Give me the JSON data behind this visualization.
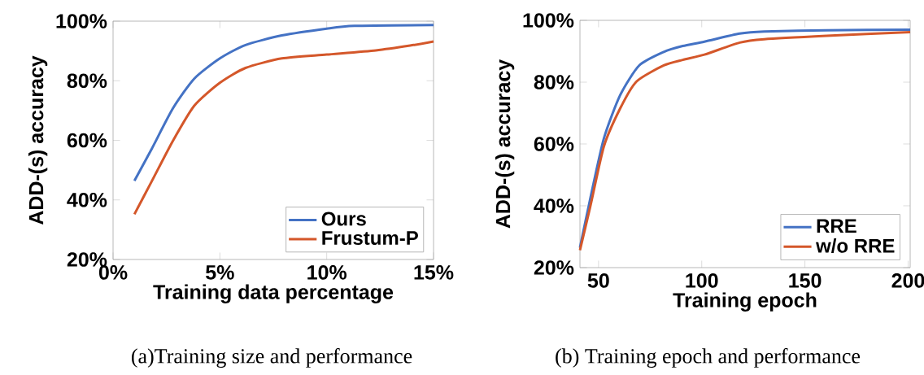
{
  "chart_data": [
    {
      "type": "line",
      "xlabel": "Training data percentage",
      "ylabel": "ADD-(s) accuracy",
      "xlim": [
        0,
        15
      ],
      "ylim": [
        20,
        100
      ],
      "xticks": [
        {
          "value": 0,
          "label": "0%"
        },
        {
          "value": 5,
          "label": "5%"
        },
        {
          "value": 10,
          "label": "10%"
        },
        {
          "value": 15,
          "label": "15%"
        }
      ],
      "yticks": [
        {
          "value": 20,
          "label": "20%"
        },
        {
          "value": 40,
          "label": "40%"
        },
        {
          "value": 60,
          "label": "60%"
        },
        {
          "value": 80,
          "label": "80%"
        },
        {
          "value": 100,
          "label": "100%"
        }
      ],
      "series": [
        {
          "name": "Ours",
          "color": "#4472c4",
          "x": [
            1.0,
            1.8,
            2.8,
            3.8,
            5.0,
            6.2,
            7.9,
            10.0,
            11.3,
            15.0
          ],
          "values": [
            46.4,
            57.0,
            70.7,
            80.7,
            87.5,
            92.0,
            95.2,
            97.5,
            98.4,
            98.7
          ]
        },
        {
          "name": "Frustum-P",
          "color": "#d4572a",
          "x": [
            1.0,
            1.8,
            2.8,
            3.8,
            5.0,
            6.2,
            7.9,
            10.0,
            12.3,
            13.9,
            15.0
          ],
          "values": [
            35.2,
            46.1,
            59.8,
            71.6,
            79.3,
            84.3,
            87.5,
            88.8,
            90.2,
            91.8,
            93.2
          ]
        }
      ],
      "legend": "bottom right",
      "grid": false,
      "line_style": "solid",
      "marker": "none",
      "annotations": [
        "(a)Training size and performance"
      ]
    },
    {
      "type": "line",
      "xlabel": "Training epoch",
      "ylabel": "ADD-(s) accuracy",
      "xlim": [
        41,
        201
      ],
      "ylim": [
        20,
        100
      ],
      "xticks": [
        50,
        100,
        150,
        200
      ],
      "yticks": [
        {
          "value": 20,
          "label": "20%"
        },
        {
          "value": 40,
          "label": "40%"
        },
        {
          "value": 60,
          "label": "60%"
        },
        {
          "value": 80,
          "label": "80%"
        },
        {
          "value": 100,
          "label": "100%"
        }
      ],
      "series": [
        {
          "name": "RRE",
          "color": "#4472c4",
          "x": [
            41,
            46.1,
            52.6,
            60.5,
            69.7,
            81.6,
            90.8,
            101.3,
            118.4,
            130.3,
            160.5,
            201
          ],
          "values": [
            26.4,
            42.6,
            61.8,
            75.8,
            85.4,
            89.8,
            91.7,
            93.1,
            95.7,
            96.4,
            96.8,
            97.0
          ]
        },
        {
          "name": "w/o RRE",
          "color": "#d4572a",
          "x": [
            41,
            46.1,
            52.6,
            60.5,
            68.4,
            81.6,
            90.8,
            101.3,
            118.4,
            130.3,
            160.5,
            201
          ],
          "values": [
            25.6,
            40.0,
            59.2,
            71.5,
            80.2,
            85.4,
            87.2,
            88.9,
            92.8,
            93.9,
            95.0,
            96.2
          ]
        }
      ],
      "legend": "bottom right",
      "grid": false,
      "line_style": "solid",
      "marker": "none",
      "annotations": [
        "(b) Training epoch and performance"
      ]
    }
  ]
}
